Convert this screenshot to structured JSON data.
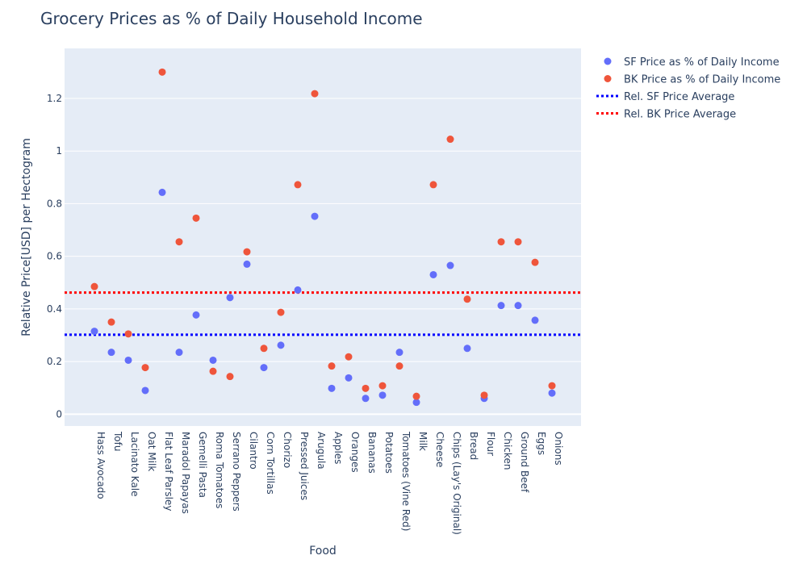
{
  "chart_data": {
    "type": "scatter",
    "title": "Grocery Prices as % of Daily Household Income",
    "xlabel": "Food",
    "ylabel": "Relative Price[USD] per Hectogram",
    "ylim": [
      -0.045,
      1.39
    ],
    "yticks": [
      0,
      0.2,
      0.4,
      0.6,
      0.8,
      1,
      1.2
    ],
    "ytick_labels": [
      "0",
      "0.2",
      "0.4",
      "0.6",
      "0.8",
      "1",
      "1.2"
    ],
    "grid": true,
    "legend_position": "top-right",
    "categories": [
      "Hass Avocado",
      "Tofu",
      "Lacinato Kale",
      "Oat Milk",
      "Flat Leaf Parsley",
      "Maradol Papayas",
      "Gemelli Pasta",
      "Roma Tomatoes",
      "Serrano Peppers",
      "Cilantro",
      "Corn Tortillas",
      "Chorizo",
      "Pressed Juices",
      "Arugula",
      "Apples",
      "Oranges",
      "Bananas",
      "Potatoes",
      "Tomatoes (Vine Red)",
      "Milk",
      "Cheese",
      "Chips (Lay's Original)",
      "Bread",
      "Flour",
      "Chicken",
      "Ground Beef",
      "Eggs",
      "Onions"
    ],
    "series": [
      {
        "name": "SF Price as % of Daily Income",
        "color": "#636efa",
        "values": [
          0.315,
          0.235,
          0.205,
          0.09,
          0.843,
          0.235,
          0.377,
          0.205,
          0.443,
          0.57,
          0.177,
          0.262,
          0.472,
          0.752,
          0.098,
          0.138,
          0.06,
          0.072,
          0.235,
          0.045,
          0.53,
          0.565,
          0.25,
          0.06,
          0.413,
          0.413,
          0.357,
          0.08
        ]
      },
      {
        "name": "BK Price as % of Daily Income",
        "color": "#ef553b",
        "values": [
          0.485,
          0.35,
          0.305,
          0.177,
          1.3,
          0.655,
          0.745,
          0.163,
          0.143,
          0.617,
          0.25,
          0.387,
          0.872,
          1.218,
          0.183,
          0.218,
          0.098,
          0.108,
          0.183,
          0.068,
          0.872,
          1.045,
          0.437,
          0.072,
          0.655,
          0.655,
          0.577,
          0.108
        ]
      }
    ],
    "reference_lines": [
      {
        "name": "Rel. SF Price Average",
        "color": "#0000ff",
        "value": 0.302,
        "style": "dotted"
      },
      {
        "name": "Rel. BK Price Average",
        "color": "#ff0000",
        "value": 0.462,
        "style": "dotted"
      }
    ]
  }
}
